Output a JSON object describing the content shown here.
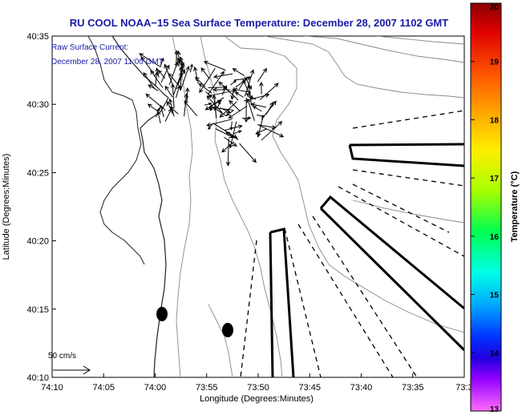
{
  "chart_data": {
    "type": "map",
    "title": "RU COOL  NOAA−15  Sea Surface Temperature:  December 28, 2007 1102 GMT",
    "overlay_label_1": "Raw Surface Current:",
    "overlay_label_2": "December 28, 2007 11:00 GMT",
    "xlabel": "Longitude (Degrees:Minutes)",
    "ylabel": "Latitude (Degrees:Minutes)",
    "x_ticks": [
      "74:10",
      "74:05",
      "74:00",
      "73:55",
      "73:50",
      "73:45",
      "73:40",
      "73:35",
      "73:3"
    ],
    "y_ticks": [
      "40:35",
      "40:30",
      "40:25",
      "40:20",
      "40:15",
      "40:10"
    ],
    "scale_label": "50 cm/s",
    "colorbar": {
      "label": "Temperature (°C)",
      "ticks": [
        "20",
        "19",
        "18",
        "17",
        "16",
        "15",
        "14",
        "13"
      ],
      "min": 13,
      "max": 20
    },
    "colors": {
      "title": "#1a1aa6",
      "annotation": "#1a1aa6",
      "contour": "#8a8a8a",
      "vector": "#000000"
    }
  }
}
